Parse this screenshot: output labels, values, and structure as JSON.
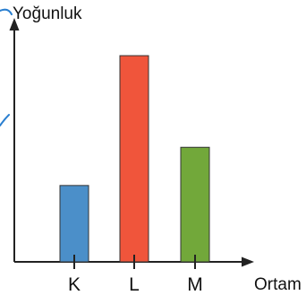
{
  "chart_data": {
    "type": "bar",
    "title": "",
    "ylabel": "Yoğunluk",
    "xlabel": "Ortam",
    "categories": [
      "K",
      "L",
      "M"
    ],
    "values": [
      1,
      2.7,
      1.5
    ],
    "ylim": [
      0,
      3.1
    ],
    "grid": false,
    "y_tick_labels_shown": false,
    "colors": [
      "#4b8fc9",
      "#f0553b",
      "#72a83a"
    ],
    "bar_outline_color": "#333333",
    "axis_color": "#222222",
    "edge_mark_color": "#2a7fd0"
  }
}
